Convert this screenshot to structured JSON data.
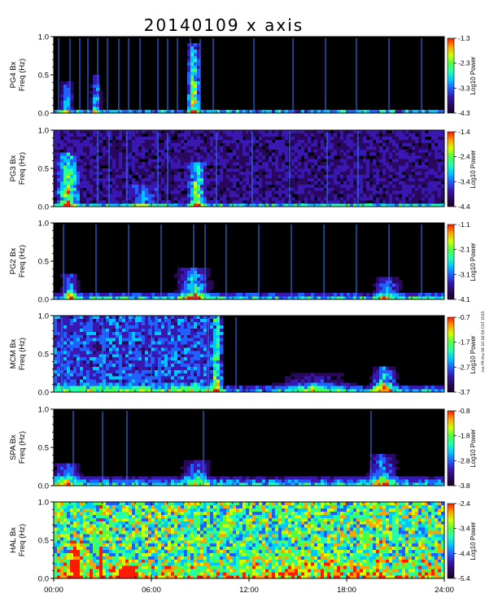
{
  "title": "20140109 x axis",
  "side_note": "me PR thu 06 10:16:59 CST 2015",
  "colors": {
    "background": "#000000",
    "colormap": [
      "#1a0022",
      "#2a0860",
      "#3818b0",
      "#2060ff",
      "#00c8ff",
      "#20ffb0",
      "#50ff40",
      "#d0ff00",
      "#ffa000",
      "#ff1a00"
    ]
  },
  "chart_data": [
    {
      "type": "heatmap",
      "ylabel": [
        "PG4 Bx",
        "Freq (Hz)"
      ],
      "ylim": [
        0.0,
        1.0
      ],
      "yticks": [
        "1.0",
        "0.5",
        "0.0"
      ],
      "xlim": [
        "00:00",
        "24:00"
      ],
      "colorbar_label": "Log10 Power",
      "colorbar_ticks": [
        "-1.3",
        "-2.3",
        "-3.3",
        "-4.3"
      ],
      "colorbar_range": [
        -4.3,
        -1.3
      ],
      "background_level": 0.02,
      "noise_level": 0.35,
      "noise_height": 0.06,
      "events": [
        {
          "center_hour": 8.6,
          "width_hours": 0.5,
          "intensity": 0.6,
          "top_freq": 0.9
        },
        {
          "center_hour": 2.6,
          "width_hours": 0.35,
          "intensity": 0.4,
          "top_freq": 0.5
        },
        {
          "center_hour": 0.8,
          "width_hours": 0.5,
          "intensity": 0.35,
          "top_freq": 0.4
        }
      ],
      "spikes_hours": [
        0.3,
        1.0,
        1.6,
        2.1,
        2.7,
        3.3,
        4.0,
        4.6,
        5.3,
        6.4,
        7.0,
        7.6,
        8.4,
        9.0,
        9.8,
        12.3,
        14.7,
        16.7,
        18.6,
        20.6,
        22.6
      ]
    },
    {
      "type": "heatmap",
      "ylabel": [
        "PG3 Bx",
        "Freq (Hz)"
      ],
      "ylim": [
        0.0,
        1.0
      ],
      "yticks": [
        "1.0",
        "0.5",
        "0.0"
      ],
      "xlim": [
        "00:00",
        "24:00"
      ],
      "colorbar_label": "Log10 Power",
      "colorbar_ticks": [
        "-1.4",
        "-2.4",
        "-3.4",
        "-4.4"
      ],
      "colorbar_range": [
        -4.4,
        -1.4
      ],
      "background_level": 0.1,
      "noise_level": 0.35,
      "noise_height": 0.05,
      "events": [
        {
          "center_hour": 0.9,
          "width_hours": 0.8,
          "intensity": 0.45,
          "top_freq": 0.7
        },
        {
          "center_hour": 8.8,
          "width_hours": 0.6,
          "intensity": 0.45,
          "top_freq": 0.6
        },
        {
          "center_hour": 5.5,
          "width_hours": 1.0,
          "intensity": 0.2,
          "top_freq": 0.3
        }
      ],
      "spikes_hours": [
        2.7,
        3.4,
        4.5,
        6.4,
        7.0,
        10.0,
        12.2,
        14.5,
        16.8,
        18.7
      ]
    },
    {
      "type": "heatmap",
      "ylabel": [
        "PG2 Bx",
        "Freq (Hz)"
      ],
      "ylim": [
        0.0,
        1.0
      ],
      "yticks": [
        "1.0",
        "0.5",
        "0.0"
      ],
      "xlim": [
        "00:00",
        "24:00"
      ],
      "colorbar_label": "Log10 Power",
      "colorbar_ticks": [
        "-1.1",
        "-2.1",
        "-3.1",
        "-4.1"
      ],
      "colorbar_range": [
        -4.1,
        -1.1
      ],
      "background_level": 0.03,
      "noise_level": 0.35,
      "noise_height": 0.1,
      "events": [
        {
          "center_hour": 8.6,
          "width_hours": 1.2,
          "intensity": 0.4,
          "top_freq": 0.4
        },
        {
          "center_hour": 1.0,
          "width_hours": 0.6,
          "intensity": 0.35,
          "top_freq": 0.35
        },
        {
          "center_hour": 20.5,
          "width_hours": 1.0,
          "intensity": 0.3,
          "top_freq": 0.3
        }
      ],
      "spikes_hours": [
        0.6,
        2.6,
        4.6,
        6.6,
        8.6,
        9.3,
        10.6,
        12.6,
        14.6,
        16.6,
        18.6,
        20.6,
        22.6
      ]
    },
    {
      "type": "heatmap",
      "ylabel": [
        "MCM Bx",
        "Freq (Hz)"
      ],
      "ylim": [
        0.0,
        1.0
      ],
      "yticks": [
        "1.0",
        "0.5",
        "0.0"
      ],
      "xlim": [
        "00:00",
        "24:00"
      ],
      "colorbar_label": "Log10 Power",
      "colorbar_ticks": [
        "-0.7",
        "-1.7",
        "-2.7",
        "-3.7"
      ],
      "colorbar_range": [
        -3.7,
        -0.7
      ],
      "background_level": 0.18,
      "background_until_hour": 10.3,
      "noise_level": 0.3,
      "noise_height": 0.12,
      "events": [
        {
          "center_hour": 20.3,
          "width_hours": 1.0,
          "intensity": 0.5,
          "top_freq": 0.35
        },
        {
          "center_hour": 16.0,
          "width_hours": 3.0,
          "intensity": 0.25,
          "top_freq": 0.25
        },
        {
          "center_hour": 10.0,
          "width_hours": 0.3,
          "intensity": 0.35,
          "top_freq": 1.0
        }
      ],
      "spikes_hours": [
        0.5,
        3.0,
        6.0,
        9.5,
        11.2
      ]
    },
    {
      "type": "heatmap",
      "ylabel": [
        "SPA Bx",
        "Freq (Hz)"
      ],
      "ylim": [
        0.0,
        1.0
      ],
      "yticks": [
        "1.0",
        "0.5",
        "0.0"
      ],
      "xlim": [
        "00:00",
        "24:00"
      ],
      "colorbar_label": "Log10 Power",
      "colorbar_ticks": [
        "-0.8",
        "-1.8",
        "-2.8",
        "-3.8"
      ],
      "colorbar_range": [
        -3.8,
        -0.8
      ],
      "background_level": 0.03,
      "noise_level": 0.3,
      "noise_height": 0.15,
      "events": [
        {
          "center_hour": 0.8,
          "width_hours": 1.0,
          "intensity": 0.35,
          "top_freq": 0.3
        },
        {
          "center_hour": 8.8,
          "width_hours": 1.0,
          "intensity": 0.3,
          "top_freq": 0.35
        },
        {
          "center_hour": 20.2,
          "width_hours": 1.0,
          "intensity": 0.35,
          "top_freq": 0.4
        }
      ],
      "spikes_hours": [
        1.2,
        3.0,
        4.5,
        9.2,
        19.5
      ]
    },
    {
      "type": "heatmap",
      "ylabel": [
        "HAL Bx",
        "Freq (Hz)"
      ],
      "ylim": [
        0.0,
        1.0
      ],
      "yticks": [
        "1.0",
        "0.5",
        "0.0"
      ],
      "xlim": [
        "00:00",
        "24:00"
      ],
      "xticks": [
        "00:00",
        "06:00",
        "12:00",
        "18:00",
        "24:00"
      ],
      "colorbar_label": "Log10 Power",
      "colorbar_ticks": [
        "-2.4",
        "-3.4",
        "-4.4",
        "-5.4"
      ],
      "colorbar_range": [
        -5.4,
        -2.4
      ],
      "background_level": 0.38,
      "noise_level": 0.15,
      "noise_height": 0.3,
      "events": [
        {
          "center_hour": 1.4,
          "width_hours": 0.5,
          "intensity": 0.55,
          "top_freq": 0.5
        },
        {
          "center_hour": 4.3,
          "width_hours": 1.0,
          "intensity": 0.3,
          "top_freq": 0.25
        },
        {
          "center_hour": 2.9,
          "width_hours": 0.15,
          "intensity": 0.3,
          "top_freq": 1.0
        },
        {
          "center_hour": 20.0,
          "width_hours": 0.15,
          "intensity": 0.25,
          "top_freq": 1.0
        }
      ],
      "spikes_hours": []
    }
  ]
}
